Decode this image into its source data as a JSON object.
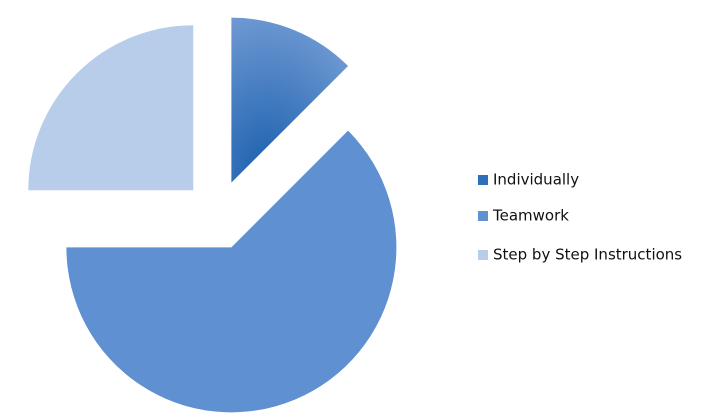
{
  "chart_data": {
    "type": "pie",
    "categories": [
      "Individually",
      "Teamwork",
      "Step by Step Instructions"
    ],
    "values": [
      12.5,
      62.5,
      25
    ],
    "colors": [
      "#2f6fba",
      "#5e90d2",
      "#b7cdea"
    ]
  }
}
